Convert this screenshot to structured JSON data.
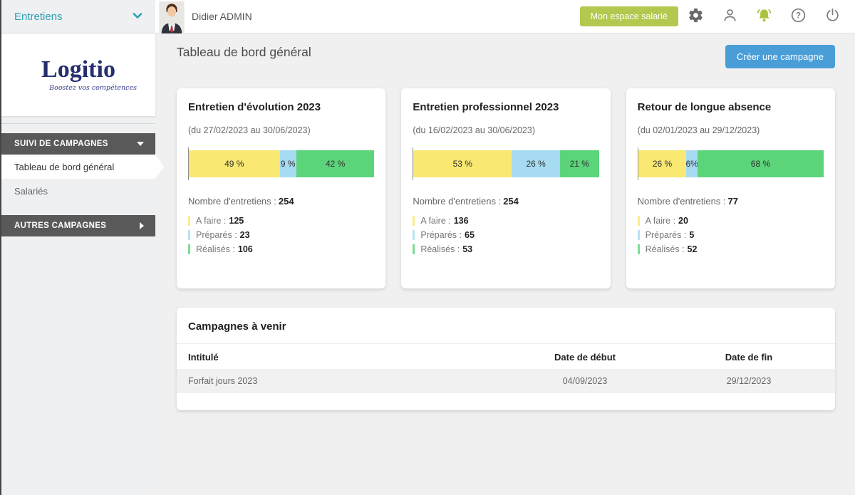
{
  "colors": {
    "statuses": [
      "#f9e871",
      "#a6dbf2",
      "#5bd47a"
    ],
    "accent_green": "#b2c84e",
    "accent_blue": "#4a9ed8",
    "brand_navy": "#252e6e",
    "teal": "#2d9fb5",
    "sidebar_dark": "#595959"
  },
  "topbar": {
    "user_name": "Didier ADMIN",
    "espace_button_label": "Mon espace salarié"
  },
  "sidebar": {
    "app_selector_label": "Entretiens",
    "logo_name": "Logitio",
    "logo_tagline": "Boostez vos compétences",
    "section1_label": "SUIVI DE CAMPAGNES",
    "item_dashboard": "Tableau de bord général",
    "item_salaries": "Salariés",
    "section2_label": "AUTRES CAMPAGNES"
  },
  "main": {
    "page_title": "Tableau de bord général",
    "create_campaign_label": "Créer une campagne"
  },
  "chart_data": [
    {
      "type": "bar",
      "title": "Entretien d'évolution 2023",
      "subtitle": "(du 27/02/2023 au 30/06/2023)",
      "segments": [
        {
          "status": "A faire",
          "pct": 49,
          "label": "49 %"
        },
        {
          "status": "Préparés",
          "pct": 9,
          "label": "9 %"
        },
        {
          "status": "Réalisés",
          "pct": 42,
          "label": "42 %"
        }
      ],
      "total_label": "Nombre d'entretiens :",
      "total": "254",
      "legend": [
        {
          "label": "A faire :",
          "value": "125"
        },
        {
          "label": "Préparés :",
          "value": "23"
        },
        {
          "label": "Réalisés :",
          "value": "106"
        }
      ]
    },
    {
      "type": "bar",
      "title": "Entretien professionnel 2023",
      "subtitle": "(du 16/02/2023 au 30/06/2023)",
      "segments": [
        {
          "status": "A faire",
          "pct": 53,
          "label": "53 %"
        },
        {
          "status": "Préparés",
          "pct": 26,
          "label": "26 %"
        },
        {
          "status": "Réalisés",
          "pct": 21,
          "label": "21 %"
        }
      ],
      "total_label": "Nombre d'entretiens :",
      "total": "254",
      "legend": [
        {
          "label": "A faire :",
          "value": "136"
        },
        {
          "label": "Préparés :",
          "value": "65"
        },
        {
          "label": "Réalisés :",
          "value": "53"
        }
      ]
    },
    {
      "type": "bar",
      "title": "Retour de longue absence",
      "subtitle": "(du 02/01/2023 au 29/12/2023)",
      "segments": [
        {
          "status": "A faire",
          "pct": 26,
          "label": "26 %"
        },
        {
          "status": "Préparés",
          "pct": 6,
          "label": "6%"
        },
        {
          "status": "Réalisés",
          "pct": 68,
          "label": "68 %"
        }
      ],
      "total_label": "Nombre d'entretiens :",
      "total": "77",
      "legend": [
        {
          "label": "A faire :",
          "value": "20"
        },
        {
          "label": "Préparés :",
          "value": "5"
        },
        {
          "label": "Réalisés :",
          "value": "52"
        }
      ]
    }
  ],
  "upcoming": {
    "title": "Campagnes à venir",
    "headers": [
      "Intitulé",
      "Date de début",
      "Date de fin"
    ],
    "rows": [
      [
        "Forfait jours 2023",
        "04/09/2023",
        "29/12/2023"
      ]
    ]
  }
}
